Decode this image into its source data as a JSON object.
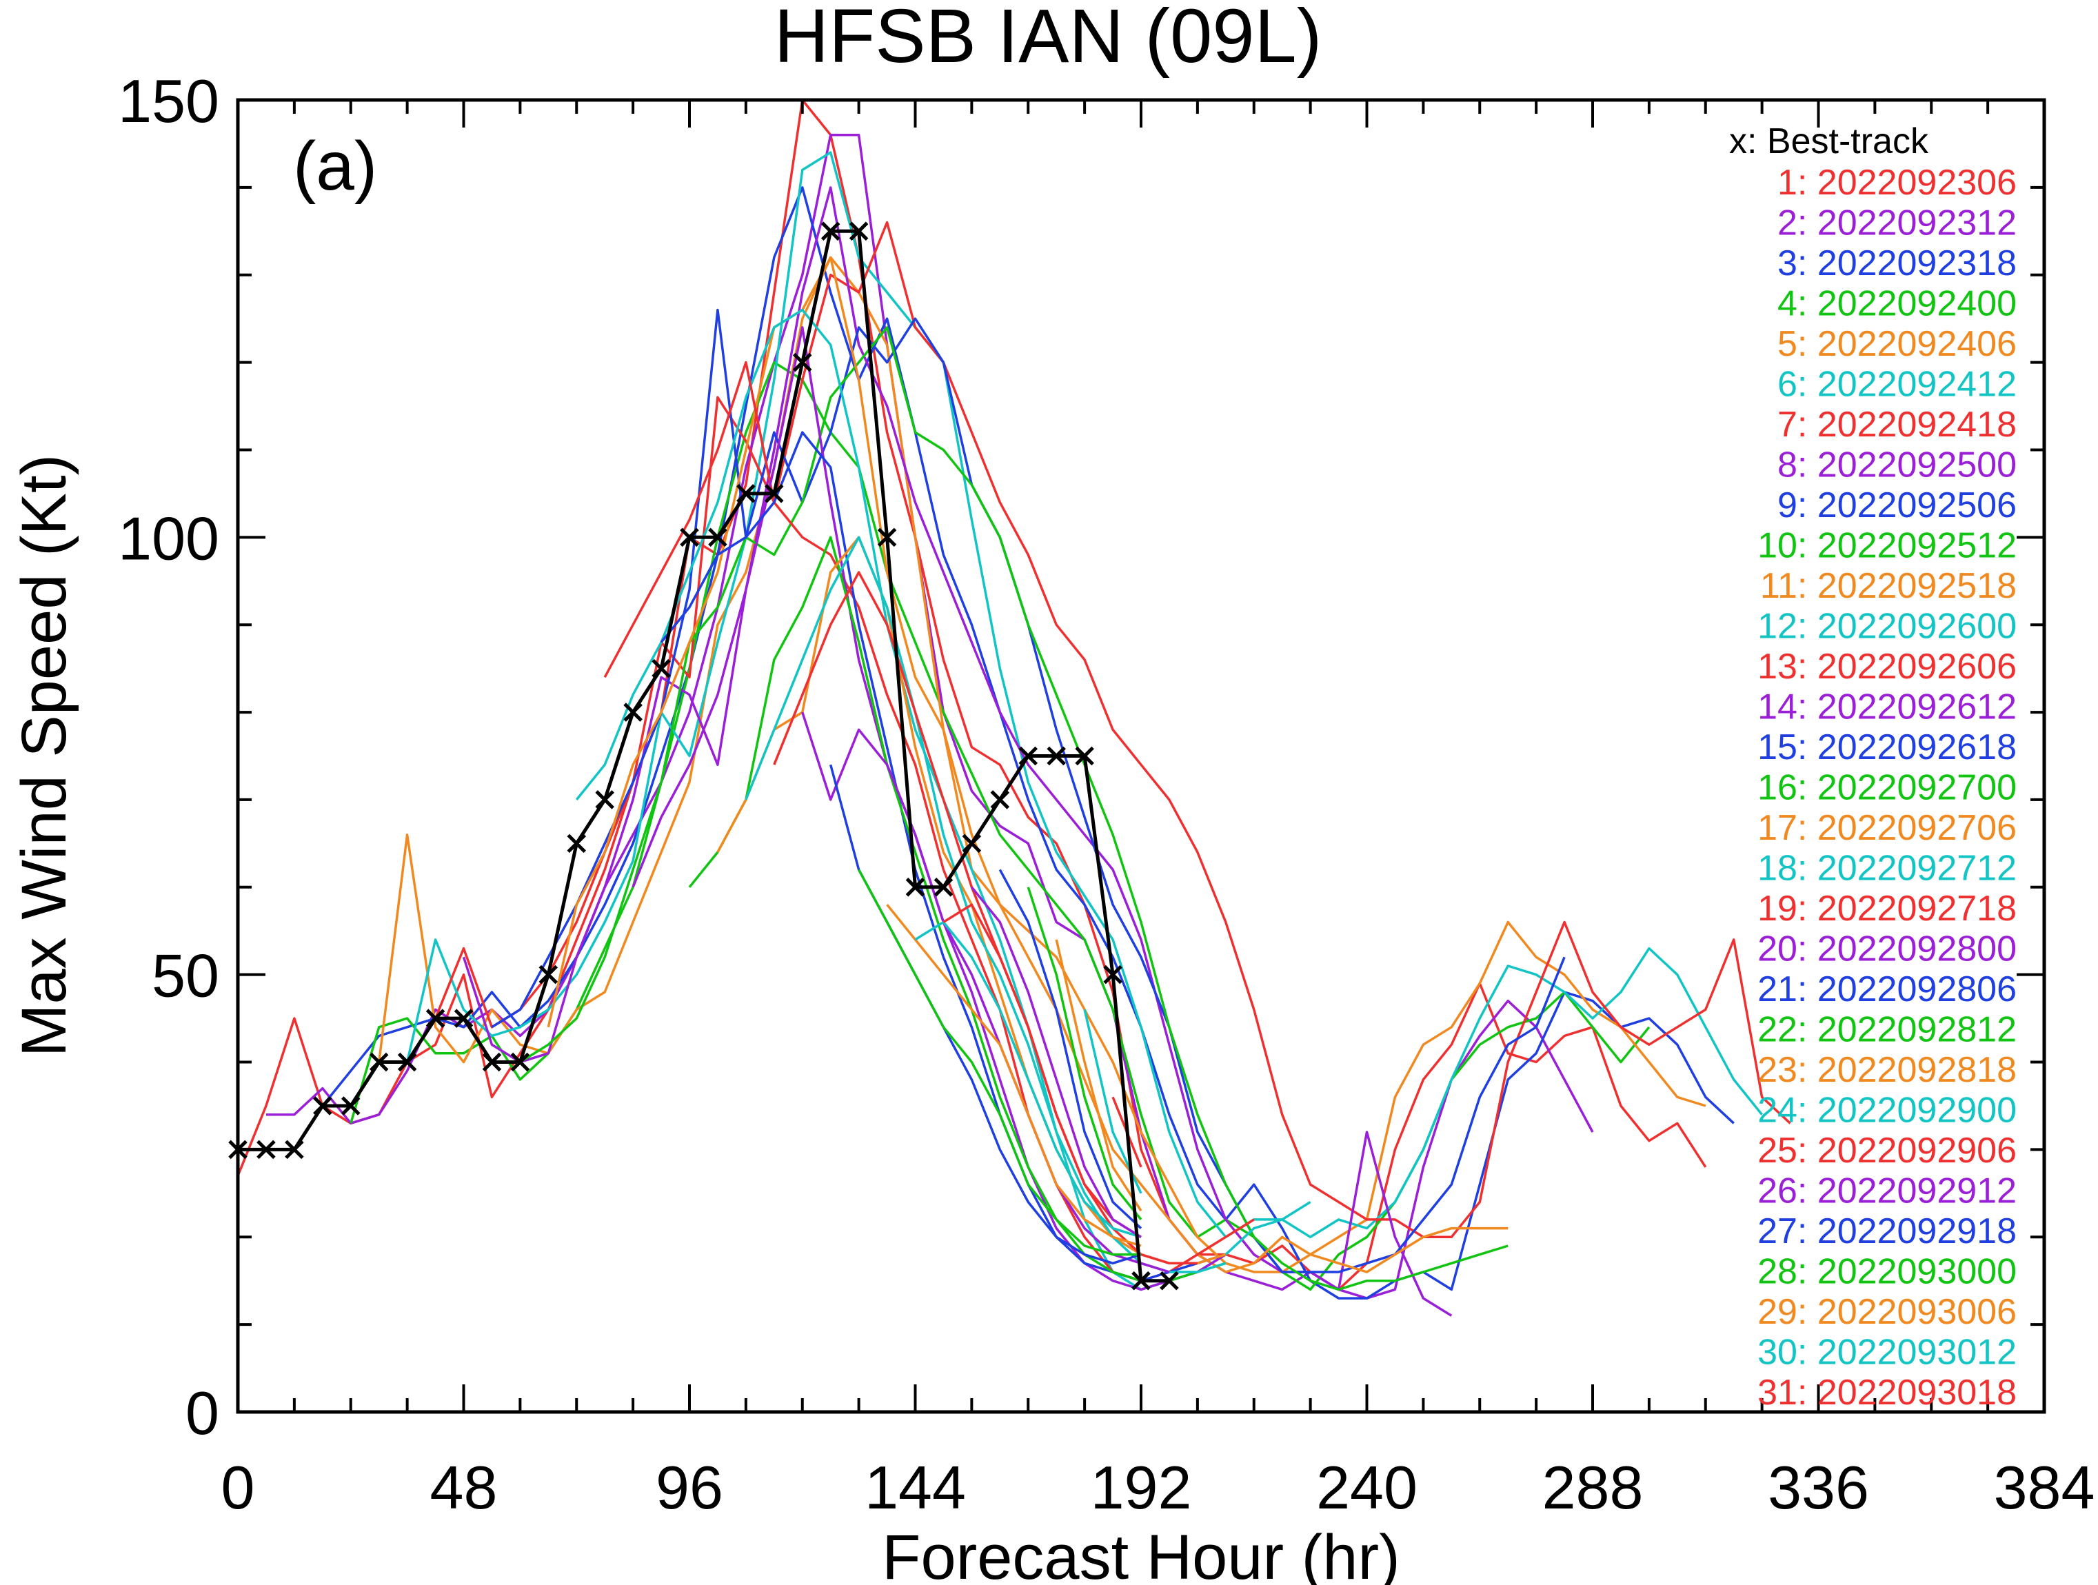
{
  "chart_data": {
    "type": "line",
    "title": "HFSB  IAN (09L)",
    "panel_label": "(a)",
    "xlabel": "Forecast Hour (hr)",
    "ylabel": "Max Wind Speed (Kt)",
    "xlim": [
      0,
      384
    ],
    "ylim": [
      0,
      150
    ],
    "xticks": [
      0,
      48,
      96,
      144,
      192,
      240,
      288,
      336,
      384
    ],
    "yticks": [
      0,
      50,
      100,
      150
    ],
    "legend_position": "top-right",
    "legend_header": "x: Best-track",
    "best_track": {
      "name": "Best-track",
      "color": "#000000",
      "x": [
        0,
        6,
        12,
        18,
        24,
        30,
        36,
        42,
        48,
        54,
        60,
        66,
        72,
        78,
        84,
        90,
        96,
        102,
        108,
        114,
        120,
        126,
        132,
        138,
        144,
        150,
        156,
        162,
        168,
        174,
        180,
        186,
        192,
        198
      ],
      "y": [
        30,
        30,
        30,
        35,
        35,
        40,
        40,
        45,
        45,
        40,
        40,
        50,
        65,
        70,
        80,
        85,
        100,
        100,
        105,
        105,
        120,
        135,
        135,
        100,
        60,
        60,
        65,
        70,
        75,
        75,
        75,
        50,
        15,
        15
      ]
    },
    "series": [
      {
        "name": "1: 2022092306",
        "color": "#ef3030",
        "x0": 0,
        "values": [
          27,
          35,
          45,
          35,
          33,
          34,
          40,
          42,
          50,
          36,
          41,
          46,
          54,
          62,
          72,
          80,
          100,
          98,
          106,
          128,
          150,
          146,
          132,
          112,
          100,
          86,
          76,
          74,
          68,
          65,
          58,
          48,
          30,
          22,
          18,
          18,
          17,
          19,
          16,
          14,
          17,
          30,
          38,
          42,
          49,
          41,
          40,
          43,
          44,
          35,
          31,
          33,
          28
        ]
      },
      {
        "name": "2: 2022092312",
        "color": "#9a1fd6",
        "x0": 6,
        "values": [
          34,
          34,
          37,
          33,
          34,
          39,
          46,
          44,
          46,
          43,
          46,
          52,
          60,
          66,
          72,
          80,
          92,
          108,
          120,
          130,
          146,
          146,
          122,
          100,
          80,
          71,
          67,
          65,
          56,
          54,
          46,
          32,
          22,
          18,
          16,
          15,
          14,
          16,
          14,
          13,
          14,
          28,
          38,
          43,
          47,
          44,
          38,
          32
        ]
      },
      {
        "name": "3: 2022092318",
        "color": "#1f3fe0",
        "x0": 18,
        "values": [
          35,
          39,
          43,
          44,
          45,
          44,
          48,
          44,
          47,
          52,
          58,
          65,
          75,
          85,
          98,
          115,
          132,
          140,
          128,
          118,
          125,
          112,
          98,
          90,
          80,
          70,
          62,
          58,
          52,
          44,
          34,
          26,
          22,
          26,
          21,
          15,
          13,
          13,
          15,
          16,
          14,
          26,
          38,
          41,
          48,
          47,
          44,
          45,
          42,
          36,
          33
        ]
      },
      {
        "name": "4: 2022092400",
        "color": "#12c412",
        "x0": 24,
        "values": [
          33,
          44,
          45,
          41,
          41,
          43,
          38,
          41,
          46,
          53,
          60,
          72,
          85,
          100,
          112,
          120,
          118,
          112,
          108,
          96,
          88,
          80,
          73,
          66,
          62,
          58,
          54,
          46,
          34,
          24,
          20,
          22,
          20,
          16,
          14,
          18,
          20,
          24,
          30,
          38,
          42,
          44,
          45,
          48,
          44,
          40,
          44
        ]
      },
      {
        "name": "5: 2022092406",
        "color": "#f08a20",
        "x0": 30,
        "values": [
          40,
          66,
          44,
          40,
          46,
          42,
          41,
          46,
          48,
          56,
          64,
          72,
          90,
          96,
          108,
          125,
          132,
          128,
          122,
          100,
          78,
          62,
          58,
          55,
          52,
          46,
          40,
          32,
          26,
          20,
          17,
          16,
          16,
          18,
          20,
          22,
          36,
          42,
          44,
          49,
          56,
          52,
          50,
          46,
          44,
          40,
          36,
          35
        ]
      },
      {
        "name": "6: 2022092412",
        "color": "#12c4c4",
        "x0": 36,
        "values": [
          40,
          54,
          46,
          43,
          44,
          46,
          50,
          56,
          63,
          80,
          75,
          88,
          100,
          118,
          142,
          144,
          132,
          128,
          124,
          120,
          102,
          85,
          72,
          64,
          59,
          54,
          44,
          32,
          24,
          20,
          22,
          22,
          20,
          22,
          21,
          24,
          30,
          38,
          45,
          51,
          50,
          48,
          45,
          48,
          53,
          50,
          44,
          38,
          34
        ]
      },
      {
        "name": "7: 2022092418",
        "color": "#ef3030",
        "x0": 42,
        "values": [
          45,
          53,
          44,
          46,
          50,
          56,
          64,
          72,
          88,
          84,
          116,
          111,
          104,
          118,
          130,
          128,
          136,
          124,
          120,
          112,
          104,
          98,
          90,
          86,
          78,
          74,
          70,
          64,
          56,
          46,
          34,
          26,
          24,
          22,
          22,
          20,
          20,
          24,
          40,
          48,
          56,
          48,
          44,
          42,
          44,
          46,
          54,
          36,
          33
        ]
      },
      {
        "name": "8: 2022092500",
        "color": "#9a1fd6",
        "x0": 48,
        "values": [
          52,
          42,
          40,
          41,
          52,
          60,
          70,
          84,
          82,
          74,
          94,
          110,
          128,
          140,
          122,
          115,
          104,
          96,
          88,
          80,
          74,
          70,
          66,
          62,
          54,
          42,
          30,
          22,
          18,
          16,
          16,
          14,
          32,
          20,
          13,
          11
        ]
      },
      {
        "name": "9: 2022092506",
        "color": "#1f3fe0",
        "x0": 54,
        "values": [
          44,
          46,
          52,
          58,
          65,
          72,
          80,
          94,
          126,
          100,
          112,
          104,
          112,
          124,
          120,
          125,
          120,
          106,
          100,
          90,
          78,
          68,
          58,
          52,
          44,
          32,
          26,
          20,
          16,
          16,
          16,
          17,
          18,
          22,
          26,
          36,
          42,
          44,
          52
        ]
      },
      {
        "name": "10: 2022092512",
        "color": "#12c412",
        "x0": 60,
        "values": [
          40,
          42,
          45,
          52,
          62,
          72,
          88,
          92,
          100,
          98,
          104,
          116,
          120,
          124,
          112,
          110,
          106,
          100,
          90,
          82,
          74,
          66,
          56,
          44,
          34,
          26,
          20,
          17,
          15,
          14,
          15,
          15,
          16,
          17,
          18,
          19
        ]
      },
      {
        "name": "11: 2022092518",
        "color": "#f08a20",
        "x0": 66,
        "values": [
          44,
          58,
          64,
          74,
          80,
          88,
          96,
          110,
          124,
          126,
          132,
          118,
          96,
          84,
          78,
          66,
          58,
          52,
          46,
          38,
          30,
          26,
          22,
          18,
          16,
          17,
          20,
          18,
          17,
          16,
          18,
          20,
          21,
          21,
          21
        ]
      },
      {
        "name": "12: 2022092600",
        "color": "#12c4c4",
        "x0": 72,
        "values": [
          70,
          74,
          82,
          88,
          96,
          104,
          116,
          124,
          126,
          122,
          108,
          90,
          78,
          70,
          62,
          54,
          44,
          32,
          22,
          16,
          14,
          15,
          16,
          18,
          21,
          22,
          24
        ]
      },
      {
        "name": "13: 2022092606",
        "color": "#ef3030",
        "x0": 78,
        "values": [
          84,
          90,
          96,
          102,
          110,
          120,
          104,
          100,
          98,
          92,
          82,
          74,
          62,
          54,
          46,
          34,
          26,
          20,
          16,
          15,
          16,
          18,
          20,
          22
        ]
      },
      {
        "name": "14: 2022092612",
        "color": "#9a1fd6",
        "x0": 84,
        "values": [
          60,
          68,
          74,
          82,
          94,
          108,
          124,
          104,
          86,
          74,
          66,
          56,
          48,
          38,
          28,
          21,
          17,
          15,
          14,
          15,
          16,
          18
        ]
      },
      {
        "name": "15: 2022092618",
        "color": "#1f3fe0",
        "x0": 90,
        "values": [
          88,
          92,
          98,
          100,
          104,
          112,
          108,
          90,
          76,
          62,
          52,
          44,
          34,
          26,
          20,
          17,
          16,
          15,
          16,
          17,
          18
        ]
      },
      {
        "name": "16: 2022092700",
        "color": "#12c412",
        "x0": 96,
        "values": [
          60,
          64,
          70,
          86,
          92,
          100,
          88,
          74,
          64,
          54,
          46,
          36,
          28,
          22,
          18,
          16,
          15,
          15,
          16,
          17
        ]
      },
      {
        "name": "17: 2022092706",
        "color": "#f08a20",
        "x0": 102,
        "values": [
          64,
          70,
          78,
          80,
          96,
          100,
          92,
          76,
          64,
          58,
          48,
          38,
          30,
          24,
          20,
          18,
          17,
          17,
          18
        ]
      },
      {
        "name": "18: 2022092712",
        "color": "#12c4c4",
        "x0": 108,
        "values": [
          70,
          78,
          86,
          94,
          100,
          92,
          80,
          66,
          56,
          50,
          42,
          32,
          25,
          20,
          17,
          16,
          16,
          17
        ]
      },
      {
        "name": "19: 2022092718",
        "color": "#ef3030",
        "x0": 114,
        "values": [
          74,
          82,
          90,
          96,
          90,
          80,
          70,
          60,
          52,
          44,
          34,
          26,
          21,
          18,
          17,
          17
        ]
      },
      {
        "name": "20: 2022092800",
        "color": "#9a1fd6",
        "x0": 120,
        "values": [
          80,
          70,
          78,
          74,
          66,
          56,
          50,
          42,
          34,
          26,
          21,
          18,
          17,
          16
        ]
      },
      {
        "name": "21: 2022092806",
        "color": "#1f3fe0",
        "x0": 126,
        "values": [
          74,
          62,
          56,
          50,
          44,
          38,
          30,
          24,
          20,
          18,
          17,
          18
        ]
      },
      {
        "name": "22: 2022092812",
        "color": "#12c412",
        "x0": 132,
        "values": [
          62,
          56,
          50,
          44,
          40,
          34,
          26,
          22,
          19,
          18,
          18
        ]
      },
      {
        "name": "23: 2022092818",
        "color": "#f08a20",
        "x0": 138,
        "values": [
          58,
          54,
          50,
          46,
          42,
          34,
          26,
          22,
          20,
          19
        ]
      },
      {
        "name": "24: 2022092900",
        "color": "#12c4c4",
        "x0": 144,
        "values": [
          54,
          56,
          52,
          46,
          38,
          30,
          24,
          21,
          20
        ]
      },
      {
        "name": "25: 2022092906",
        "color": "#ef3030",
        "x0": 150,
        "values": [
          56,
          58,
          52,
          44,
          34,
          26,
          22,
          20
        ]
      },
      {
        "name": "26: 2022092912",
        "color": "#9a1fd6",
        "x0": 156,
        "values": [
          60,
          56,
          48,
          38,
          28,
          22,
          20
        ]
      },
      {
        "name": "27: 2022092918",
        "color": "#1f3fe0",
        "x0": 162,
        "values": [
          62,
          56,
          46,
          32,
          24,
          21
        ]
      },
      {
        "name": "28: 2022093000",
        "color": "#12c412",
        "x0": 168,
        "values": [
          60,
          50,
          36,
          26,
          22
        ]
      },
      {
        "name": "29: 2022093006",
        "color": "#f08a20",
        "x0": 174,
        "values": [
          54,
          40,
          28,
          23
        ]
      },
      {
        "name": "30: 2022093012",
        "color": "#12c4c4",
        "x0": 180,
        "values": [
          46,
          32,
          25
        ]
      },
      {
        "name": "31: 2022093018",
        "color": "#ef3030",
        "x0": 186,
        "values": [
          36,
          28
        ]
      }
    ]
  }
}
